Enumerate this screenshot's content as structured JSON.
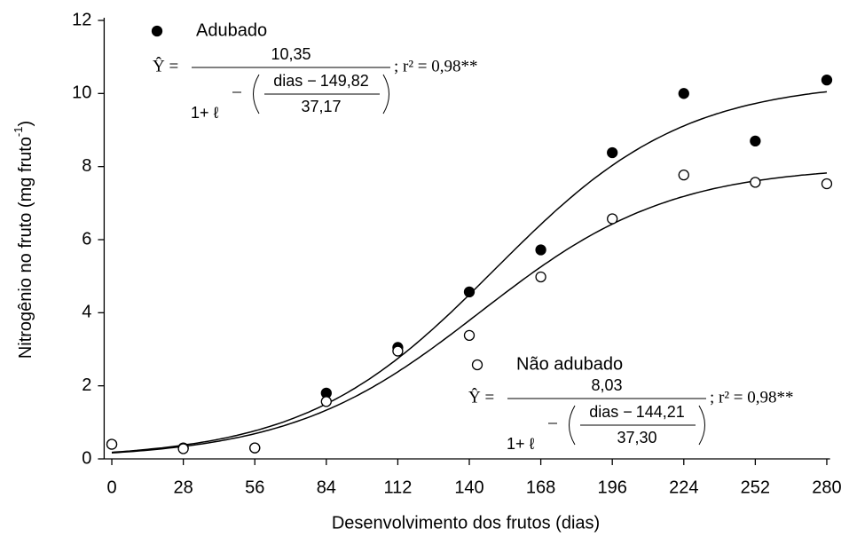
{
  "chart_data": {
    "type": "scatter",
    "x_label": "Desenvolvimento dos frutos (dias)",
    "y_label": "Nitrogênio no fruto (mg fruto",
    "y_label_sup": "-1",
    "y_label_end": ")",
    "x": [
      0,
      28,
      56,
      84,
      112,
      140,
      168,
      196,
      224,
      252,
      280
    ],
    "xlim": [
      -3,
      283
    ],
    "xticks": [
      0,
      28,
      56,
      84,
      112,
      140,
      168,
      196,
      224,
      252,
      280
    ],
    "ylim": [
      0,
      12
    ],
    "yticks": [
      0,
      2,
      4,
      6,
      8,
      10,
      12
    ],
    "series": [
      {
        "name": "Adubado",
        "color": "#000000",
        "marker": "filled",
        "values": [
          0.4,
          0.3,
          0.3,
          1.8,
          3.05,
          4.57,
          5.72,
          8.38,
          10.0,
          8.7,
          10.37
        ],
        "fit": {
          "lhs": "Ŷ =",
          "a": {
            "value": 10.35,
            "label": "10,35"
          },
          "base": "1+ ℓ",
          "var": "dias −",
          "b": {
            "value": 149.82,
            "label": "149,82"
          },
          "c": {
            "value": 37.17,
            "label": "37,17"
          },
          "r2": "; r² = 0,98**"
        }
      },
      {
        "name": "Não adubado",
        "color": "#000000",
        "marker": "open",
        "values": [
          0.4,
          0.28,
          0.3,
          1.57,
          2.95,
          3.38,
          4.98,
          6.57,
          7.77,
          7.57,
          7.53
        ],
        "fit": {
          "lhs": "Ŷ =",
          "a": {
            "value": 8.03,
            "label": "8,03"
          },
          "base": "1+ ℓ",
          "var": "dias −",
          "b": {
            "value": 144.21,
            "label": "144,21"
          },
          "c": {
            "value": 37.3,
            "label": "37,30"
          },
          "r2": "; r² = 0,98**"
        }
      }
    ]
  }
}
